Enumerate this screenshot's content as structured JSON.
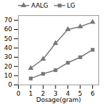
{
  "chart_data": {
    "type": "line",
    "x": [
      1,
      2,
      3,
      4,
      5,
      6
    ],
    "series": [
      {
        "name": "AALG",
        "color": "#777777",
        "marker": "triangle",
        "values": [
          18,
          28,
          45,
          60,
          63,
          68
        ]
      },
      {
        "name": "LG",
        "color": "#777777",
        "marker": "square",
        "values": [
          7,
          12,
          16,
          24,
          30,
          38
        ]
      }
    ],
    "xlabel": "Dosage(gram)",
    "xlim": [
      0,
      6.5
    ],
    "xticks": [
      0,
      1,
      2,
      3,
      4,
      5,
      6
    ],
    "ylim": [
      0,
      75
    ],
    "yticks": [
      0,
      10,
      20,
      30,
      40,
      50,
      60,
      70
    ],
    "legend": "upper left"
  }
}
